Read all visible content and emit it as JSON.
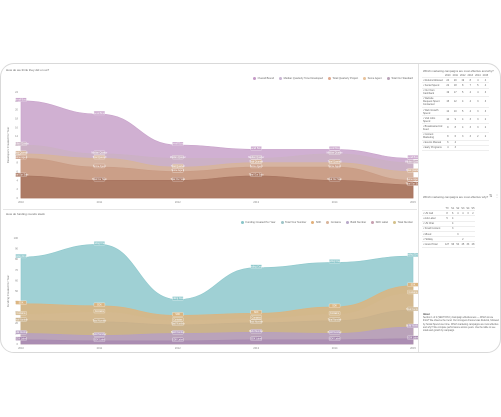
{
  "chart1": {
    "title": "How do we think they did on us?",
    "legend": [
      {
        "label": "Overall Bound",
        "color": "#c49ac6"
      },
      {
        "label": "Median Quarterly Tone Developed",
        "color": "#c9b5d3"
      },
      {
        "label": "Total Quarterly Project",
        "color": "#e0a98e"
      },
      {
        "label": "Some Agent",
        "color": "#e7c29a"
      },
      {
        "label": "Total Our Standard",
        "color": "#b9a2b8"
      }
    ],
    "ylabel": "Developers Created Per Year",
    "yticks": [
      "24",
      "22",
      "20",
      "18",
      "16",
      "14",
      "12",
      "10",
      "8",
      "6",
      "4",
      "2",
      "0"
    ],
    "xticks": [
      "2010",
      "2011",
      "2012",
      "2013",
      "2014",
      "2015"
    ]
  },
  "chart2": {
    "title": "How do funding rounds stack",
    "legend": [
      {
        "label": "Funding Created Per Year",
        "color": "#89c5c9"
      },
      {
        "label": "Total Your Number",
        "color": "#9fc4c7"
      },
      {
        "label": "SDK",
        "color": "#e2b07a"
      },
      {
        "label": "Contains",
        "color": "#d8b49a"
      },
      {
        "label": "Build Number",
        "color": "#b8a8c8"
      },
      {
        "label": "SDK Label",
        "color": "#c7a0b0"
      },
      {
        "label": "Total Number",
        "color": "#d4c08a"
      }
    ],
    "ylabel": "Funding Created Per Year",
    "yticks": [
      "100",
      "90",
      "80",
      "70",
      "60",
      "50",
      "40",
      "30",
      "20",
      "10",
      "0"
    ],
    "xticks": [
      "2010",
      "2011",
      "2012",
      "2013",
      "2014",
      "2015"
    ]
  },
  "chart_data": [
    {
      "type": "area",
      "title": "How do we think they did on us?",
      "ylabel": "Developers Created Per Year",
      "x": [
        2010,
        2011,
        2012,
        2013,
        2014,
        2015
      ],
      "ylim": [
        0,
        24
      ],
      "series": [
        {
          "name": "Overall Bound",
          "values": [
            22,
            19,
            12,
            11,
            11,
            9
          ]
        },
        {
          "name": "Median Quarterly Tone Developed",
          "values": [
            12,
            10,
            9,
            9,
            10,
            8
          ]
        },
        {
          "name": "Total Quarterly Project",
          "values": [
            10,
            9,
            7,
            8,
            8,
            6
          ]
        },
        {
          "name": "Some Agent",
          "values": [
            9,
            7,
            6,
            7,
            7,
            4
          ]
        },
        {
          "name": "Total Our Standard",
          "values": [
            5,
            4,
            4,
            5,
            4,
            3
          ]
        }
      ],
      "legend": "top-right",
      "grid": false
    },
    {
      "type": "area",
      "title": "How do funding rounds stack",
      "ylabel": "Funding Created Per Year",
      "x": [
        2010,
        2011,
        2012,
        2013,
        2014,
        2015
      ],
      "ylim": [
        0,
        100
      ],
      "series": [
        {
          "name": "Funding Created Per Year",
          "values": [
            82,
            94,
            42,
            72,
            77,
            83
          ]
        },
        {
          "name": "SDK",
          "values": [
            38,
            36,
            27,
            29,
            35,
            55
          ]
        },
        {
          "name": "Contains",
          "values": [
            28,
            30,
            22,
            24,
            28,
            48
          ]
        },
        {
          "name": "Total Number",
          "values": [
            22,
            21,
            18,
            20,
            22,
            32
          ]
        },
        {
          "name": "Build Number",
          "values": [
            10,
            8,
            10,
            11,
            10,
            16
          ]
        },
        {
          "name": "SDK Label",
          "values": [
            4,
            3,
            3,
            4,
            4,
            5
          ]
        }
      ],
      "legend": "top-right",
      "grid": false
    }
  ],
  "sidebar": {
    "table1_title": "Which marketing campaigns are most effective and why?",
    "table1_headers": [
      "2010",
      "2011",
      "2012",
      "2013",
      "2014",
      "2015"
    ],
    "table1_rows": [
      {
        "label": "Referral Allowed",
        "values": [
          "24",
          "20",
          "19",
          "8",
          "4",
          "4"
        ]
      },
      {
        "label": "Social Spend",
        "values": [
          "22",
          "18",
          "8",
          "7",
          "5",
          "4"
        ]
      },
      {
        "label": "Our Own Cashback",
        "values": [
          "19",
          "17",
          "5",
          "4",
          "4",
          "3"
        ]
      },
      {
        "label": "Website Request Spent Contacted",
        "values": [
          "15",
          "12",
          "4",
          "4",
          "3",
          "3"
        ]
      },
      {
        "label": "Web Growth Spend",
        "values": [
          "12",
          "10",
          "5",
          "4",
          "3",
          "3"
        ]
      },
      {
        "label": "Visit Jobs Spend",
        "values": [
          "10",
          "9",
          "4",
          "3",
          "3",
          "2"
        ]
      },
      {
        "label": "Broadcasted Ad Feed",
        "values": [
          "9",
          "8",
          "4",
          "3",
          "3",
          "2"
        ]
      },
      {
        "label": "Content Marketing",
        "values": [
          "8",
          "6",
          "3",
          "3",
          "2",
          "2"
        ]
      },
      {
        "label": "Events Manual",
        "values": [
          "6",
          "4",
          "",
          "",
          "",
          ""
        ]
      },
      {
        "label": "Early Programs",
        "values": [
          "4",
          "3",
          "",
          "",
          "",
          ""
        ]
      }
    ],
    "table2_title": "Which marketing campaigns are most effective why?",
    "table2_headers": [
      "TX",
      "S1",
      "S2",
      "S3",
      "S4",
      "S5"
    ],
    "table2_rows": [
      {
        "label": "US Call",
        "values": [
          "8",
          "6",
          "4",
          "4",
          "3",
          "2"
        ]
      },
      {
        "label": "Ads Label",
        "values": [
          "5",
          "4",
          "",
          "",
          "",
          ""
        ]
      },
      {
        "label": "US Chat",
        "values": [
          "",
          "4",
          "",
          "",
          "",
          ""
        ]
      },
      {
        "label": "Small Content",
        "values": [
          "",
          "3",
          "",
          "",
          "",
          ""
        ]
      },
      {
        "label": "Mixed",
        "values": [
          "",
          "",
          "3",
          "",
          "",
          ""
        ]
      },
      {
        "label": "Holiday",
        "values": [
          "",
          "",
          "",
          "2",
          "",
          ""
        ]
      },
      {
        "label": "Grand Total",
        "values": [
          "127",
          "96",
          "54",
          "45",
          "33",
          "28"
        ]
      }
    ],
    "about_title": "About",
    "about_text": "Section 1 of 2 (SECTION 1) Campaign effectiveness — Which do we think? We observe the trend. Our strongest channel was Referral, followed by Social Spend over time. Which marketing campaigns are most effective and why? We compare performance across years. Use the table to see totals and growth by campaign."
  }
}
